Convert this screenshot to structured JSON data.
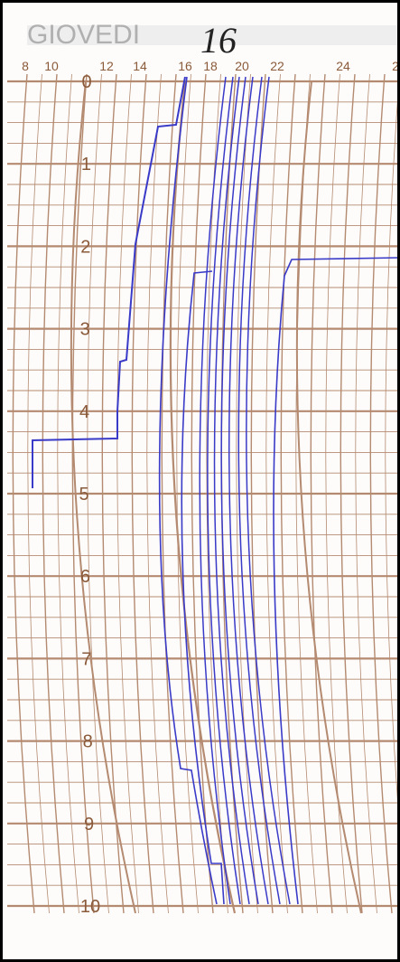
{
  "header": {
    "day": "GIOVEDI",
    "note": "16"
  },
  "top_scale": [
    "8",
    "10",
    "12",
    "14",
    "16",
    "18",
    "20",
    "22",
    "24",
    "2"
  ],
  "side_scale": [
    "0",
    "1",
    "2",
    "3",
    "4",
    "5",
    "6",
    "7",
    "8",
    "9",
    "10"
  ]
}
